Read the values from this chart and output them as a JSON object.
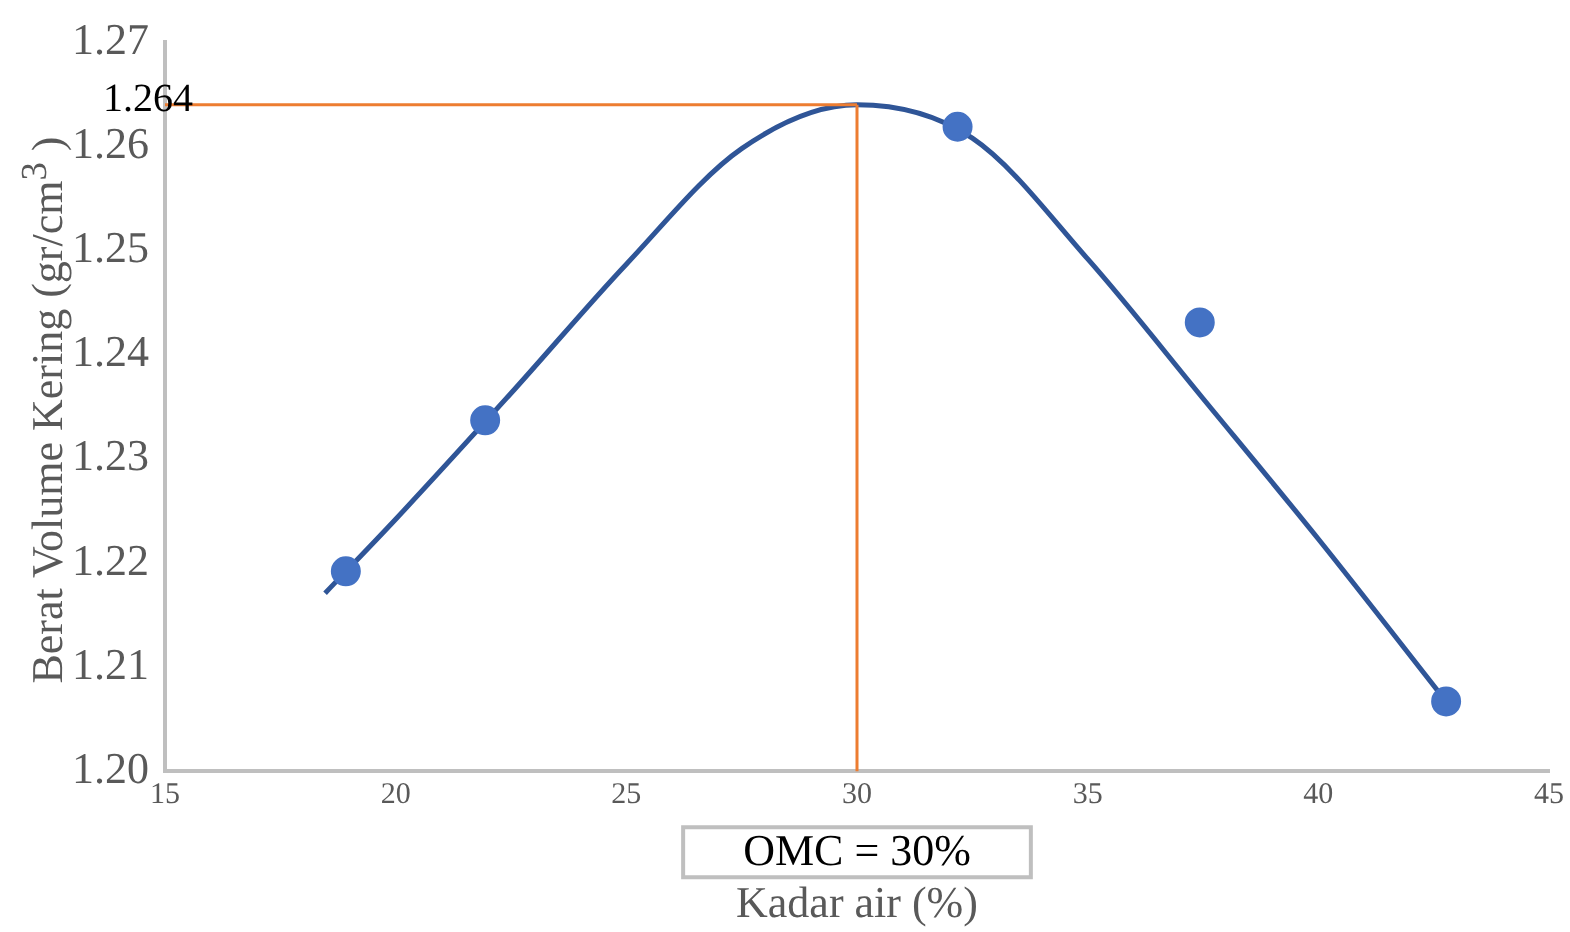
{
  "chart_data": {
    "type": "scatter",
    "xlabel": "Kadar air (%)",
    "ylabel": "Berat Volume Kering (gr/cm$^{3}$ )",
    "xlim": [
      15,
      45
    ],
    "xticks": [
      15,
      20,
      25,
      30,
      35,
      40,
      45
    ],
    "ylim": [
      1.2,
      1.27
    ],
    "yticks": [
      {
        "value": 1.2,
        "label": "1.20"
      },
      1.21,
      1.22,
      1.23,
      1.24,
      1.25,
      1.26,
      1.27
    ],
    "grid": false,
    "legend": false,
    "marker": "circle",
    "series": [
      {
        "type": "scatter",
        "color": "#4472c4",
        "x": [
          18.92,
          21.94,
          32.18,
          37.43,
          42.77
        ],
        "values": [
          1.2192,
          1.2337,
          1.2619,
          1.2431,
          1.2067
        ]
      },
      {
        "type": "line",
        "color": "#2f5597",
        "marker": "none",
        "line_style": "solid",
        "x": [
          18.47,
          20,
          22.5,
          25,
          27.5,
          30,
          32.5,
          35,
          37.5,
          40,
          42.77
        ],
        "values": [
          1.2171,
          1.2242,
          1.2363,
          1.2487,
          1.2598,
          1.264,
          1.2608,
          1.2492,
          1.2358,
          1.2223,
          1.2067
        ]
      }
    ],
    "ref_lines": [
      {
        "axis": "y",
        "value": 1.264,
        "label": "1.264",
        "color": "#ed7d31"
      },
      {
        "axis": "x",
        "value": 30,
        "label": "OMC = 30%",
        "color": "#ed7d31"
      }
    ]
  }
}
